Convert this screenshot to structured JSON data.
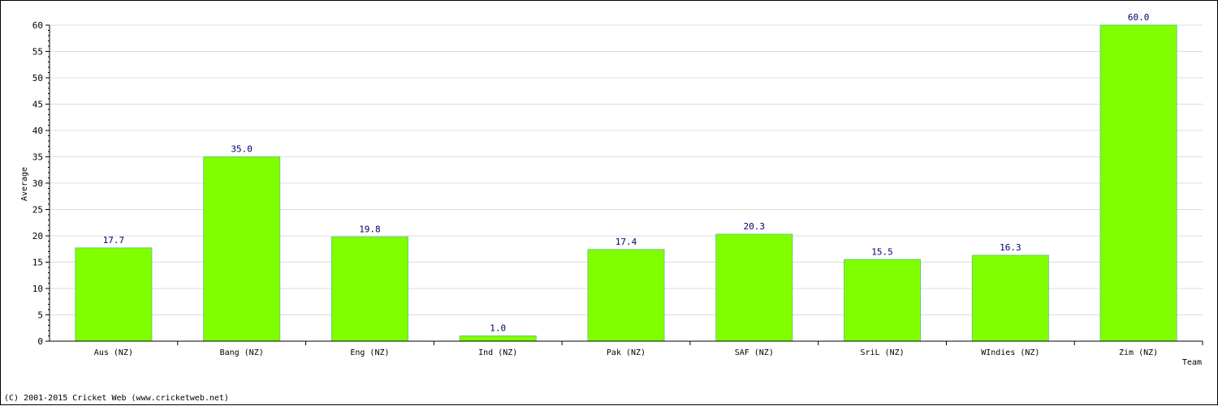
{
  "chart_data": {
    "type": "bar",
    "categories": [
      "Aus (NZ)",
      "Bang (NZ)",
      "Eng (NZ)",
      "Ind (NZ)",
      "Pak (NZ)",
      "SAF (NZ)",
      "SriL (NZ)",
      "WIndies (NZ)",
      "Zim (NZ)"
    ],
    "values": [
      17.7,
      35.0,
      19.8,
      1.0,
      17.4,
      20.3,
      15.5,
      16.3,
      60.0
    ],
    "value_labels": [
      "17.7",
      "35.0",
      "19.8",
      "1.0",
      "17.4",
      "20.3",
      "15.5",
      "16.3",
      "60.0"
    ],
    "xlabel": "Team",
    "ylabel": "Average",
    "ylim": [
      0,
      60
    ],
    "yticks": [
      "0",
      "5",
      "10",
      "15",
      "20",
      "25",
      "30",
      "35",
      "40",
      "45",
      "50",
      "55",
      "60"
    ],
    "grid": true,
    "legend": "none",
    "bar_color": "#80ff00",
    "bar_edge_color": "#66cc66",
    "value_label_color": "#000066"
  },
  "footer": {
    "copyright": "(C) 2001-2015 Cricket Web (www.cricketweb.net)"
  }
}
